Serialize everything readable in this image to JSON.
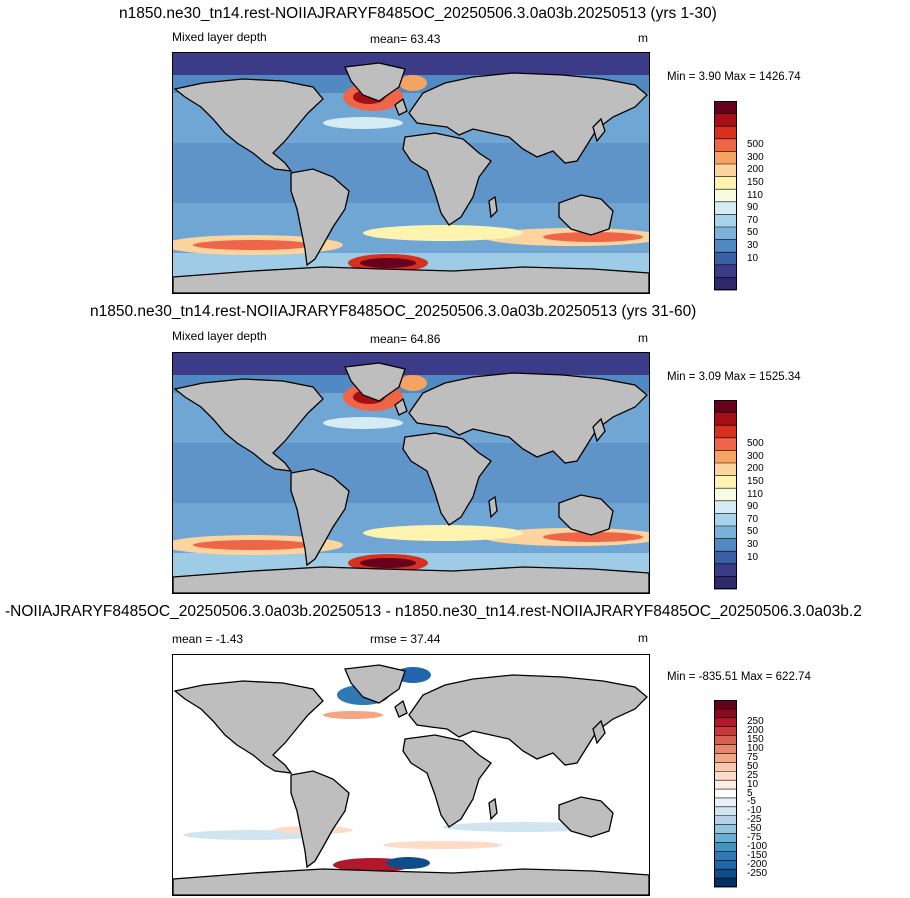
{
  "panels": [
    {
      "title": "n1850.ne30_tn14.rest-NOIIAJRARYF8485OC_20250506.3.0a03b.20250513 (yrs 1-30)",
      "left": "Mixed layer depth",
      "center": "mean=  63.43",
      "units": "m",
      "minmax": "Min =   3.90 Max = 1426.74",
      "colorbar": {
        "labels": [
          "500",
          "300",
          "200",
          "150",
          "110",
          "90",
          "70",
          "50",
          "30",
          "10"
        ],
        "colors": [
          "#67001f",
          "#a50f15",
          "#d7301f",
          "#ef6548",
          "#f4a460",
          "#fdd49e",
          "#fff3b0",
          "#f7fbe0",
          "#d6ecf5",
          "#a9d3ea",
          "#7bb2d9",
          "#5189c2",
          "#3a5fa5",
          "#3b3b88",
          "#2d2a6b"
        ]
      }
    },
    {
      "title": "n1850.ne30_tn14.rest-NOIIAJRARYF8485OC_20250506.3.0a03b.20250513 (yrs 31-60)",
      "left": "Mixed layer depth",
      "center": "mean=  64.86",
      "units": "m",
      "minmax": "Min =   3.09 Max = 1525.34",
      "colorbar": {
        "labels": [
          "500",
          "300",
          "200",
          "150",
          "110",
          "90",
          "70",
          "50",
          "30",
          "10"
        ],
        "colors": [
          "#67001f",
          "#a50f15",
          "#d7301f",
          "#ef6548",
          "#f4a460",
          "#fdd49e",
          "#fff3b0",
          "#f7fbe0",
          "#d6ecf5",
          "#a9d3ea",
          "#7bb2d9",
          "#5189c2",
          "#3a5fa5",
          "#3b3b88",
          "#2d2a6b"
        ]
      }
    },
    {
      "title": "-NOIIAJRARYF8485OC_20250506.3.0a03b.20250513 - n1850.ne30_tn14.rest-NOIIAJRARYF8485OC_20250506.3.0a03b.2",
      "left": "mean =  -1.43",
      "center": "rmse =  37.44",
      "units": "m",
      "minmax": "Min = -835.51 Max = 622.74",
      "colorbar": {
        "labels": [
          "250",
          "200",
          "150",
          "100",
          "75",
          "50",
          "25",
          "10",
          "5",
          "-5",
          "-10",
          "-25",
          "-50",
          "-75",
          "-100",
          "-150",
          "-200",
          "-250"
        ],
        "colors": [
          "#67001f",
          "#8b0a1e",
          "#b2182b",
          "#c83a3a",
          "#d6604d",
          "#e7876f",
          "#f4a582",
          "#f9c7ae",
          "#fddbc7",
          "#fdeee5",
          "#ffffff",
          "#e8f1f8",
          "#d1e5f0",
          "#b5d4e9",
          "#92c5de",
          "#6aaed6",
          "#4393c3",
          "#2f79b5",
          "#2166ac",
          "#0f4d8a",
          "#053061"
        ]
      }
    }
  ]
}
